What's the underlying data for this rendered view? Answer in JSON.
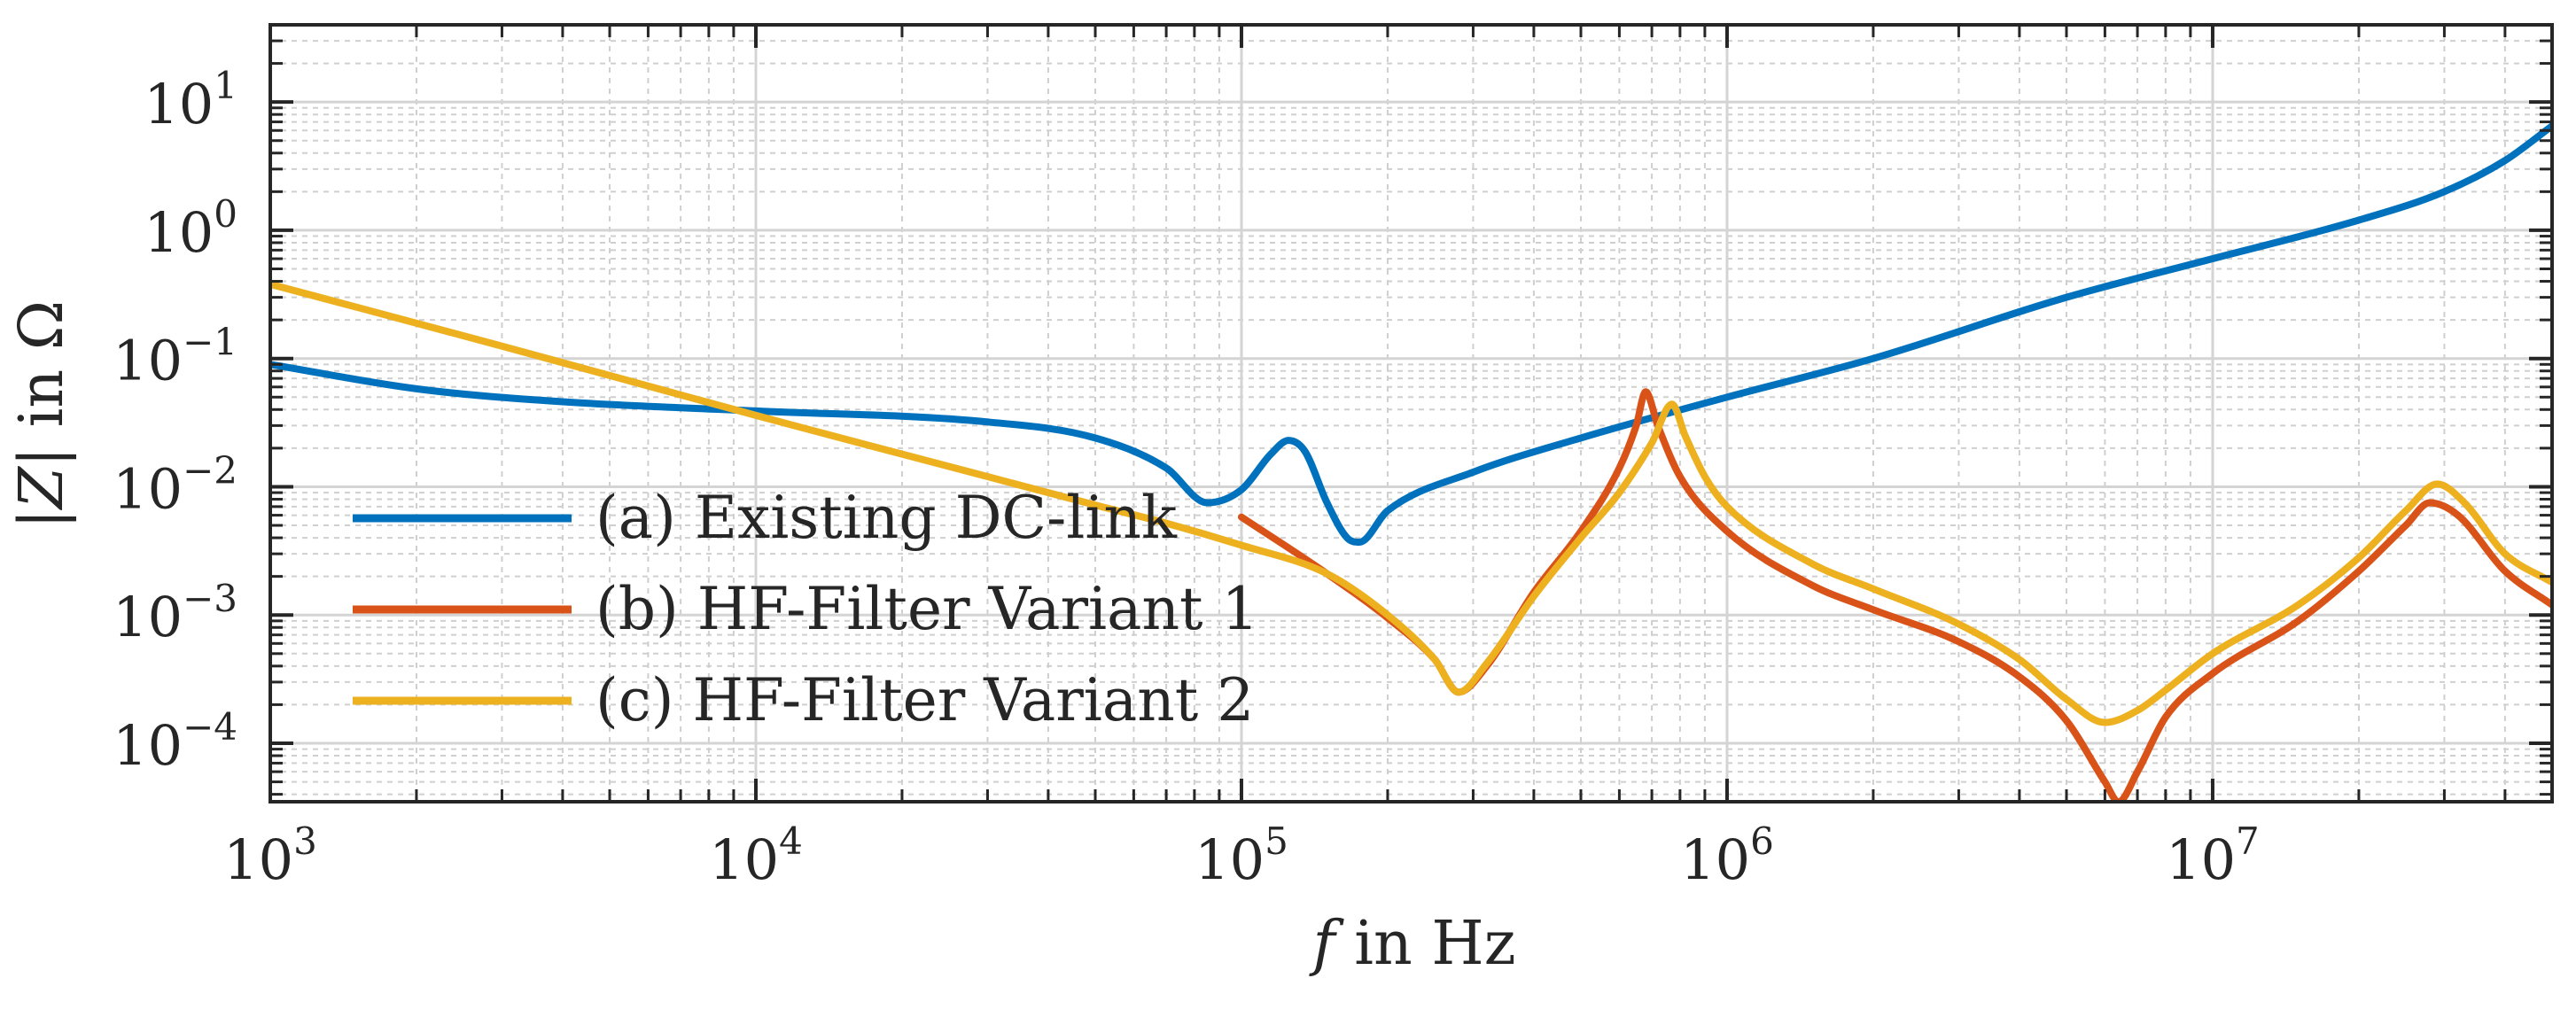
{
  "chart_data": {
    "type": "line",
    "xscale": "log",
    "yscale": "log",
    "xlim": [
      1000,
      50000000
    ],
    "ylim": [
      3.5e-05,
      40
    ],
    "xlabel_var": "f",
    "xlabel_rest": " in Hz",
    "ylabel_var": "|Z|",
    "ylabel_rest": " in Ω",
    "x_ticks": [
      {
        "value": 1000,
        "base": "10",
        "exp": "3"
      },
      {
        "value": 10000,
        "base": "10",
        "exp": "4"
      },
      {
        "value": 100000,
        "base": "10",
        "exp": "5"
      },
      {
        "value": 1000000,
        "base": "10",
        "exp": "6"
      },
      {
        "value": 10000000,
        "base": "10",
        "exp": "7"
      }
    ],
    "y_ticks": [
      {
        "value": 0.0001,
        "base": "10",
        "exp": "−4"
      },
      {
        "value": 0.001,
        "base": "10",
        "exp": "−3"
      },
      {
        "value": 0.01,
        "base": "10",
        "exp": "−2"
      },
      {
        "value": 0.1,
        "base": "10",
        "exp": "−1"
      },
      {
        "value": 1,
        "base": "10",
        "exp": "0"
      },
      {
        "value": 10,
        "base": "10",
        "exp": "1"
      }
    ],
    "legend_position": "bottom-left",
    "series": [
      {
        "name": "(a) Existing DC-link",
        "color": "#0072BD",
        "points": [
          [
            1000,
            0.09
          ],
          [
            2000,
            0.058
          ],
          [
            4000,
            0.046
          ],
          [
            10000,
            0.039
          ],
          [
            30000,
            0.032
          ],
          [
            50000,
            0.024
          ],
          [
            70000,
            0.014
          ],
          [
            85000,
            0.0075
          ],
          [
            100000,
            0.0095
          ],
          [
            115000,
            0.018
          ],
          [
            125000,
            0.023
          ],
          [
            135000,
            0.019
          ],
          [
            150000,
            0.0075
          ],
          [
            165000,
            0.004
          ],
          [
            175000,
            0.0037
          ],
          [
            200000,
            0.0065
          ],
          [
            300000,
            0.013
          ],
          [
            500000,
            0.024
          ],
          [
            1000000,
            0.05
          ],
          [
            2000000,
            0.1
          ],
          [
            5000000,
            0.3
          ],
          [
            10000000,
            0.6
          ],
          [
            20000000,
            1.2
          ],
          [
            30000000,
            2.0
          ],
          [
            40000000,
            3.5
          ],
          [
            50000000,
            6.5
          ]
        ]
      },
      {
        "name": "(b) HF-Filter Variant 1",
        "color": "#D95319",
        "points": [
          [
            100000,
            0.0058
          ],
          [
            150000,
            0.0021
          ],
          [
            200000,
            0.00095
          ],
          [
            250000,
            0.00045
          ],
          [
            280000,
            0.00025
          ],
          [
            320000,
            0.0004
          ],
          [
            400000,
            0.0015
          ],
          [
            500000,
            0.0045
          ],
          [
            600000,
            0.014
          ],
          [
            650000,
            0.03
          ],
          [
            680000,
            0.055
          ],
          [
            720000,
            0.03
          ],
          [
            800000,
            0.012
          ],
          [
            1000000,
            0.0045
          ],
          [
            1500000,
            0.0017
          ],
          [
            2000000,
            0.0011
          ],
          [
            3000000,
            0.00062
          ],
          [
            4000000,
            0.00033
          ],
          [
            5000000,
            0.00015
          ],
          [
            6000000,
            5e-05
          ],
          [
            6400000,
            3.5e-05
          ],
          [
            7000000,
            6e-05
          ],
          [
            8000000,
            0.00016
          ],
          [
            10000000,
            0.00035
          ],
          [
            15000000,
            0.0009
          ],
          [
            20000000,
            0.0022
          ],
          [
            25000000,
            0.005
          ],
          [
            28000000,
            0.0075
          ],
          [
            32000000,
            0.006
          ],
          [
            40000000,
            0.0022
          ],
          [
            50000000,
            0.0012
          ]
        ]
      },
      {
        "name": "(c) HF-Filter Variant 2",
        "color": "#EDB120",
        "points": [
          [
            1000,
            0.38
          ],
          [
            3000,
            0.125
          ],
          [
            10000,
            0.036
          ],
          [
            30000,
            0.012
          ],
          [
            50000,
            0.0072
          ],
          [
            70000,
            0.0052
          ],
          [
            100000,
            0.0035
          ],
          [
            150000,
            0.0021
          ],
          [
            200000,
            0.001
          ],
          [
            250000,
            0.00045
          ],
          [
            280000,
            0.00025
          ],
          [
            320000,
            0.00042
          ],
          [
            400000,
            0.0014
          ],
          [
            500000,
            0.004
          ],
          [
            600000,
            0.009
          ],
          [
            700000,
            0.022
          ],
          [
            770000,
            0.044
          ],
          [
            820000,
            0.025
          ],
          [
            900000,
            0.012
          ],
          [
            1000000,
            0.007
          ],
          [
            1500000,
            0.0025
          ],
          [
            2000000,
            0.0016
          ],
          [
            3000000,
            0.00085
          ],
          [
            4000000,
            0.00045
          ],
          [
            5000000,
            0.00022
          ],
          [
            6000000,
            0.000145
          ],
          [
            7000000,
            0.00018
          ],
          [
            8000000,
            0.00026
          ],
          [
            10000000,
            0.0005
          ],
          [
            15000000,
            0.0012
          ],
          [
            20000000,
            0.0028
          ],
          [
            25000000,
            0.0065
          ],
          [
            29000000,
            0.0105
          ],
          [
            33000000,
            0.0075
          ],
          [
            40000000,
            0.003
          ],
          [
            50000000,
            0.0018
          ]
        ]
      }
    ]
  }
}
